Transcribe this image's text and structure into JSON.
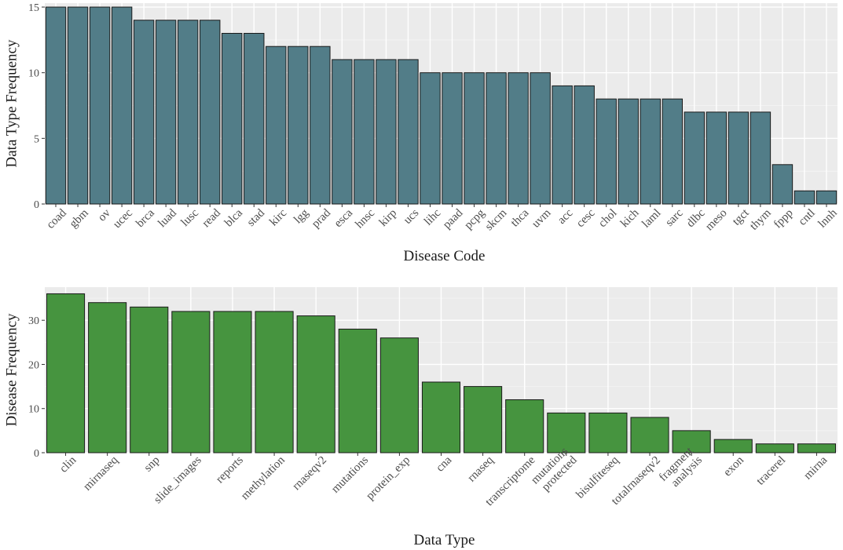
{
  "chart_data": [
    {
      "type": "bar",
      "title": "",
      "xlabel": "Disease Code",
      "ylabel": "Data Type Frequency",
      "ylim": [
        0,
        15.3
      ],
      "yticks": [
        0,
        5,
        10,
        15
      ],
      "grid": true,
      "bar_color": "#527d88",
      "panel_bg": "#ebebeb",
      "grid_color": "#ffffff",
      "categories": [
        "coad",
        "gbm",
        "ov",
        "ucec",
        "brca",
        "luad",
        "lusc",
        "read",
        "blca",
        "stad",
        "kirc",
        "lgg",
        "prad",
        "esca",
        "hnsc",
        "kirp",
        "ucs",
        "lihc",
        "paad",
        "pcpg",
        "skcm",
        "thca",
        "uvm",
        "acc",
        "cesc",
        "chol",
        "kich",
        "laml",
        "sarc",
        "dlbc",
        "meso",
        "tgct",
        "thym",
        "fppp",
        "cntl",
        "lnnh"
      ],
      "values": [
        15,
        15,
        15,
        15,
        14,
        14,
        14,
        14,
        13,
        13,
        12,
        12,
        12,
        11,
        11,
        11,
        11,
        10,
        10,
        10,
        10,
        10,
        10,
        9,
        9,
        8,
        8,
        8,
        8,
        7,
        7,
        7,
        7,
        3,
        1,
        1
      ]
    },
    {
      "type": "bar",
      "title": "",
      "xlabel": "Data Type",
      "ylabel": "Disease Frequency",
      "ylim": [
        0,
        37.5
      ],
      "yticks": [
        0,
        10,
        20,
        30
      ],
      "grid": true,
      "bar_color": "#46943f",
      "panel_bg": "#ebebeb",
      "grid_color": "#ffffff",
      "categories": [
        "clin",
        "mirnaseq",
        "snp",
        "slide_images",
        "reports",
        "methylation",
        "rnaseqv2",
        "mutations",
        "protein_exp",
        "cna",
        "rnaseq",
        "transcriptome",
        "mutations\nprotected",
        "bisulfiteseq",
        "totalrnaseqv2",
        "fragment\nanalysis",
        "exon",
        "tracerel",
        "mirna"
      ],
      "values": [
        36,
        34,
        33,
        32,
        32,
        32,
        31,
        28,
        26,
        16,
        15,
        12,
        9,
        9,
        8,
        5,
        3,
        2,
        2
      ]
    }
  ]
}
